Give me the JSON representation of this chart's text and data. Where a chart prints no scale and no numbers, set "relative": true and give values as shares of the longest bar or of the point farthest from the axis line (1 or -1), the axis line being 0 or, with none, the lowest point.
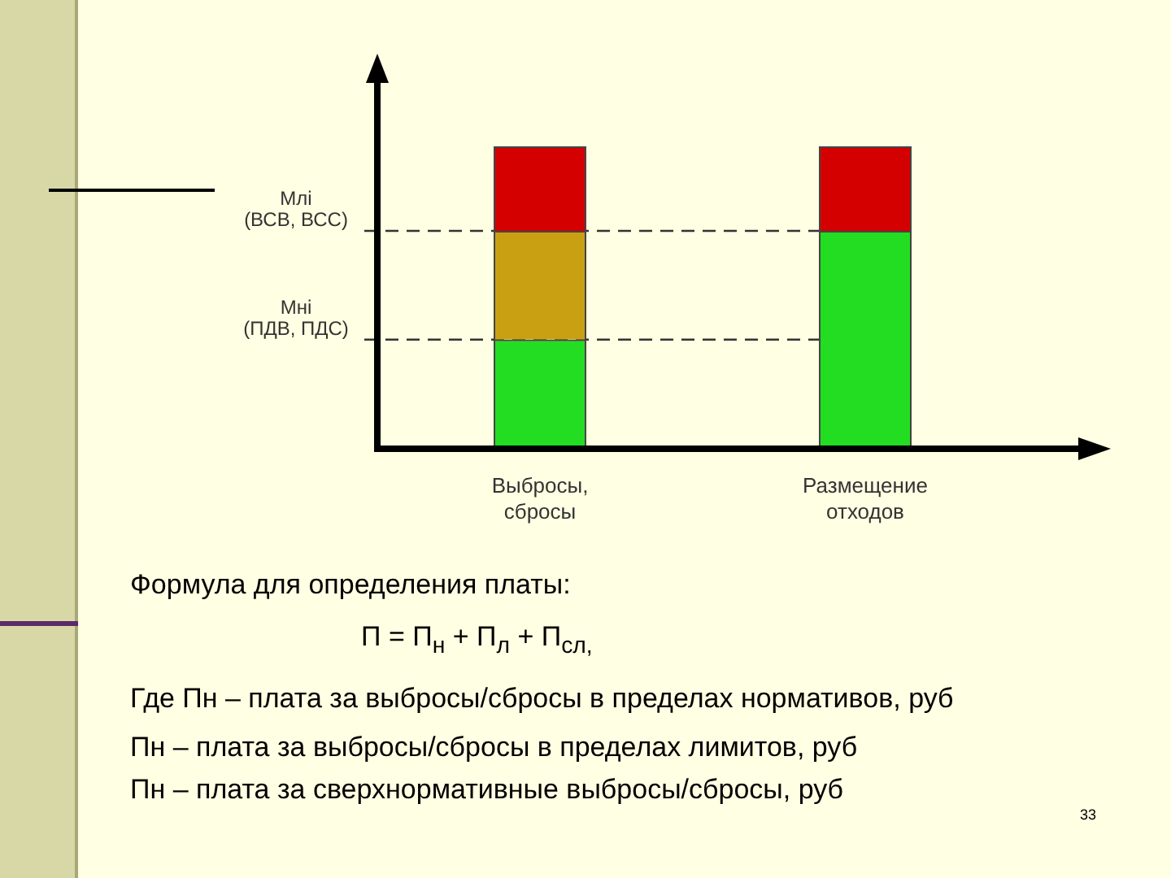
{
  "chart_data": {
    "type": "bar",
    "stacked": true,
    "relative": true,
    "grid": false,
    "legend": false,
    "categories": [
      "Выбросы,\nсбросы",
      "Размещение\nотходов"
    ],
    "series": [
      {
        "color": "#22dd22",
        "values": [
          0.36,
          0.72
        ]
      },
      {
        "color": "#c8a012",
        "values": [
          0.36,
          null
        ]
      },
      {
        "color": "#d40000",
        "values": [
          0.28,
          0.28
        ]
      }
    ],
    "ref_lines": [
      {
        "axis": "y",
        "value": 0.72,
        "label": "Млi\n(ВСВ, ВСС)",
        "line_style": "dashed"
      },
      {
        "axis": "y",
        "value": 0.36,
        "label": "Мнi\n(ПДВ, ПДС)",
        "line_style": "dashed"
      }
    ],
    "annotations": [
      "Формула для определения платы:",
      "П = П$_{н}$ + П$_{л}$ + П$_{сл,}$",
      "Где Пн – плата за выбросы/сбросы в пределах нормативов, руб",
      "Пн – плата за выбросы/сбросы в пределах лимитов, руб",
      "Пн – плата за сверхнормативные выбросы/сбросы, руб",
      "33"
    ]
  }
}
